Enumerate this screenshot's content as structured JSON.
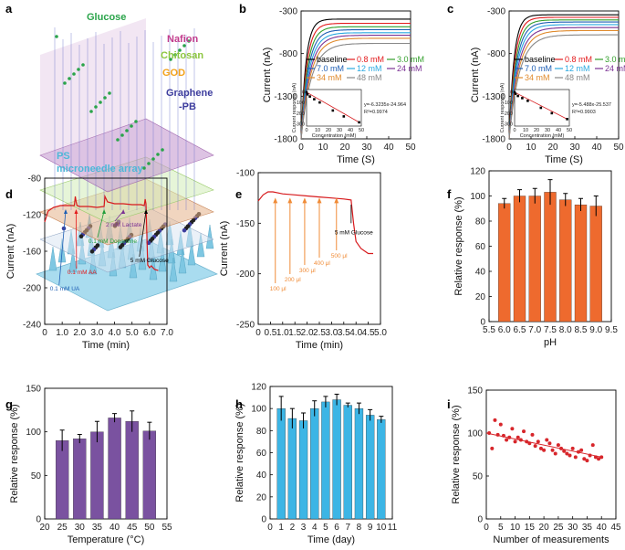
{
  "panel_letters": [
    "a",
    "b",
    "c",
    "d",
    "e",
    "f",
    "g",
    "h",
    "i"
  ],
  "schematic": {
    "labels": {
      "glucose": "Glucose",
      "nafion": "Nafion",
      "chitosan": "Chitosan",
      "god": "GOD",
      "graphene": "Graphene",
      "pb": "-PB",
      "ps": "PS",
      "array": "microneedle array"
    },
    "colors": {
      "glucose": "#2aa44a",
      "nafion": "#c23b8c",
      "chitosan": "#8cc63f",
      "god": "#f3a21b",
      "graphene": "#3d3d9e",
      "ps": "#4db8d8"
    }
  },
  "colors": {
    "red_trace": "#d7191c",
    "orange_bar": "#ee6a2e",
    "purple_bar": "#7a52a0",
    "blue_bar": "#3cb5e5",
    "scatter_red": "#d7262b",
    "arrow_orange": "#f08c38"
  },
  "chart_data": [
    {
      "id": "b",
      "type": "line",
      "title": "",
      "xlabel": "Time (S)",
      "ylabel": "Current (nA)",
      "xlim": [
        0,
        50
      ],
      "ylim": [
        -1800,
        -300
      ],
      "xticks": [
        0,
        10,
        20,
        30,
        40,
        50
      ],
      "yticks": [
        -300,
        -800,
        -1300,
        -1800
      ],
      "series": [
        {
          "name": "baseline",
          "color": "#000000",
          "plateau": -395
        },
        {
          "name": "0.8 mM",
          "color": "#e31a1c",
          "plateau": -445
        },
        {
          "name": "3.0 mM",
          "color": "#33a02c",
          "plateau": -485
        },
        {
          "name": "7.0 mM",
          "color": "#1f5fb4",
          "plateau": -520
        },
        {
          "name": "12 mM",
          "color": "#29a8e0",
          "plateau": -555
        },
        {
          "name": "24 mM",
          "color": "#7b3294",
          "plateau": -585
        },
        {
          "name": "34 mM",
          "color": "#e08a2c",
          "plateau": -620
        },
        {
          "name": "48 mM",
          "color": "#888888",
          "plateau": -680
        }
      ],
      "inset": {
        "xlabel": "Concentration (mM)",
        "ylabel": "Current response (nA)",
        "xticks": [
          0,
          10,
          20,
          30,
          40,
          50
        ],
        "yticks": [
          0,
          -100,
          -200,
          -300
        ],
        "ylim": [
          -320,
          20
        ],
        "x": [
          0,
          0.8,
          3,
          7,
          12,
          24,
          34,
          48
        ],
        "y": [
          -5,
          -25,
          -45,
          -70,
          -100,
          -175,
          -230,
          -285
        ],
        "equation": "y=-6.3235x-24.964",
        "r2": "R²=0.9974"
      }
    },
    {
      "id": "c",
      "type": "line",
      "title": "",
      "xlabel": "Time (S)",
      "ylabel": "Current (nA)",
      "xlim": [
        0,
        50
      ],
      "ylim": [
        -1800,
        -300
      ],
      "xticks": [
        0,
        10,
        20,
        30,
        40,
        50
      ],
      "yticks": [
        -300,
        -800,
        -1300,
        -1800
      ],
      "series": [
        {
          "name": "baseline",
          "color": "#000000",
          "plateau": -345
        },
        {
          "name": "0.8 mM",
          "color": "#e31a1c",
          "plateau": -375
        },
        {
          "name": "3.0 mM",
          "color": "#33a02c",
          "plateau": -405
        },
        {
          "name": "7.0 mM",
          "color": "#1f5fb4",
          "plateau": -430
        },
        {
          "name": "12 mM",
          "color": "#29a8e0",
          "plateau": -460
        },
        {
          "name": "24 mM",
          "color": "#7b3294",
          "plateau": -495
        },
        {
          "name": "34 mM",
          "color": "#e08a2c",
          "plateau": -530
        },
        {
          "name": "48 mM",
          "color": "#888888",
          "plateau": -580
        }
      ],
      "inset": {
        "xlabel": "Concentration (mM)",
        "ylabel": "Current response (nA)",
        "xticks": [
          0,
          10,
          20,
          30,
          40,
          50
        ],
        "yticks": [
          0,
          -100,
          -200,
          -300
        ],
        "ylim": [
          -320,
          20
        ],
        "x": [
          0,
          0.8,
          3,
          7,
          12,
          24,
          34,
          48
        ],
        "y": [
          -5,
          -20,
          -40,
          -60,
          -85,
          -150,
          -200,
          -255
        ],
        "equation": "y=-5.488x-25.537",
        "r2": "R²=0.9903"
      }
    },
    {
      "id": "d",
      "type": "line",
      "xlabel": "Time (min)",
      "ylabel": "Current (nA)",
      "xlim": [
        0,
        7
      ],
      "ylim": [
        -240,
        -80
      ],
      "xticks": [
        0,
        1,
        2,
        3,
        4,
        5,
        6,
        7
      ],
      "xticklabels": [
        "0",
        "1.0",
        "2.0",
        "3.0",
        "4.0",
        "5.0",
        "6.0",
        "7.0"
      ],
      "yticks": [
        -80,
        -120,
        -160,
        -200,
        -240
      ],
      "x": [
        0,
        0.2,
        0.5,
        0.9,
        1.2,
        1.7,
        1.75,
        1.8,
        1.85,
        2.0,
        2.5,
        3.0,
        3.4,
        3.45,
        3.6,
        4.0,
        4.5,
        5.0,
        5.5,
        5.7,
        5.75,
        5.8,
        5.9,
        6.0,
        6.1,
        6.3,
        6.5
      ],
      "y": [
        -128,
        -116,
        -112,
        -110,
        -110,
        -110,
        -100,
        -106,
        -110,
        -111,
        -111,
        -112,
        -111,
        -100,
        -106,
        -108,
        -108,
        -109,
        -109,
        -110,
        -103,
        -108,
        -175,
        -178,
        -176,
        -180,
        -181
      ],
      "annotations": [
        {
          "text": "0.1 mM UA",
          "color": "#1f5fb4",
          "x": 1.2
        },
        {
          "text": "0.1 mM  AA",
          "color": "#e31a1c",
          "x": 1.8
        },
        {
          "text": "0.1 mM Dopamine",
          "color": "#1e9e3a",
          "x": 3.4
        },
        {
          "text": "2 mM Lactate",
          "color": "#7b3294",
          "x": 4.5
        },
        {
          "text": "5 mM Glucose",
          "color": "#000000",
          "x": 5.8
        }
      ]
    },
    {
      "id": "e",
      "type": "line",
      "xlabel": "Time (min)",
      "ylabel": "Current (nA)",
      "xlim": [
        0,
        5
      ],
      "ylim": [
        -250,
        -100
      ],
      "xticks": [
        0,
        0.5,
        1,
        1.5,
        2,
        2.5,
        3,
        3.5,
        4,
        4.5,
        5
      ],
      "xticklabels": [
        "0",
        "0.5",
        "1.0",
        "1.5",
        "2.0",
        "2.5",
        "3.0",
        "3.5",
        "4.0",
        "4.5",
        "5.0"
      ],
      "yticks": [
        -100,
        -150,
        -200,
        -250
      ],
      "x": [
        0,
        0.2,
        0.4,
        0.6,
        0.8,
        1.0,
        1.5,
        2.0,
        2.5,
        3.0,
        3.5,
        3.8,
        3.9,
        4.0,
        4.2,
        4.5,
        4.7
      ],
      "y": [
        -128,
        -122,
        -119,
        -119,
        -120,
        -121,
        -122,
        -123,
        -124,
        -125,
        -126,
        -127,
        -150,
        -168,
        -175,
        -180,
        -180
      ],
      "annotations": [
        {
          "text": "100 μl",
          "x": 0.7
        },
        {
          "text": "200 μl",
          "x": 1.3
        },
        {
          "text": "300 μl",
          "x": 1.9
        },
        {
          "text": "400 μl",
          "x": 2.5
        },
        {
          "text": "500 μl",
          "x": 3.2
        },
        {
          "text": "5 mM Glucose",
          "x": 3.8
        }
      ]
    },
    {
      "id": "f",
      "type": "bar",
      "xlabel": "pH",
      "ylabel": "Relative response (%)",
      "xlim": [
        5.5,
        9.5
      ],
      "ylim": [
        0,
        120
      ],
      "xticks": [
        5.5,
        6.0,
        6.5,
        7.0,
        7.5,
        8.0,
        8.5,
        9.0,
        9.5
      ],
      "xticklabels": [
        "5.5",
        "6.0",
        "6.5",
        "7.0",
        "7.5",
        "8.0",
        "8.5",
        "9.0",
        "9.5"
      ],
      "yticks": [
        0,
        20,
        40,
        60,
        80,
        100,
        120
      ],
      "x": [
        6.0,
        6.5,
        7.0,
        7.5,
        8.0,
        8.5,
        9.0
      ],
      "values": [
        94,
        100,
        100,
        103,
        97,
        93,
        92
      ],
      "errors": [
        4,
        5,
        6,
        10,
        5,
        5,
        8
      ]
    },
    {
      "id": "g",
      "type": "bar",
      "xlabel": "Temperature (°C)",
      "ylabel": "Relative response (%)",
      "xlim": [
        20,
        55
      ],
      "ylim": [
        0,
        150
      ],
      "xticks": [
        20,
        25,
        30,
        35,
        40,
        45,
        50,
        55
      ],
      "yticks": [
        0,
        50,
        100,
        150
      ],
      "x": [
        25,
        30,
        35,
        40,
        45,
        50
      ],
      "values": [
        90,
        92,
        100,
        116,
        112,
        101
      ],
      "errors": [
        12,
        5,
        12,
        5,
        12,
        10
      ]
    },
    {
      "id": "h",
      "type": "bar",
      "xlabel": "Time (day)",
      "ylabel": "Relative response (%)",
      "xlim": [
        0,
        11
      ],
      "ylim": [
        0,
        120
      ],
      "xticks": [
        0,
        1,
        2,
        3,
        4,
        5,
        6,
        7,
        8,
        9,
        10,
        11
      ],
      "yticks": [
        0,
        20,
        40,
        60,
        80,
        100,
        120
      ],
      "x": [
        1,
        2,
        3,
        4,
        5,
        6,
        7,
        8,
        9,
        10
      ],
      "values": [
        100,
        91,
        89,
        100,
        106,
        108,
        103,
        100,
        94,
        90
      ],
      "errors": [
        11,
        9,
        7,
        7,
        5,
        5,
        2,
        5,
        5,
        3
      ]
    },
    {
      "id": "i",
      "type": "scatter",
      "xlabel": "Number of measurements",
      "ylabel": "Relative response (%)",
      "xlim": [
        0,
        45
      ],
      "ylim": [
        0,
        150
      ],
      "xticks": [
        0,
        5,
        10,
        15,
        20,
        25,
        30,
        35,
        40,
        45
      ],
      "yticks": [
        0,
        50,
        100,
        150
      ],
      "x": [
        1,
        2,
        3,
        4,
        5,
        6,
        7,
        8,
        9,
        10,
        11,
        12,
        13,
        14,
        15,
        16,
        17,
        18,
        19,
        20,
        21,
        22,
        23,
        24,
        25,
        26,
        27,
        28,
        29,
        30,
        31,
        32,
        33,
        34,
        35,
        36,
        37,
        38,
        39,
        40
      ],
      "y": [
        100,
        82,
        115,
        98,
        110,
        97,
        92,
        95,
        105,
        90,
        95,
        92,
        102,
        90,
        88,
        98,
        85,
        90,
        82,
        80,
        92,
        88,
        80,
        76,
        86,
        82,
        79,
        76,
        74,
        82,
        72,
        78,
        80,
        70,
        68,
        74,
        86,
        72,
        70,
        72
      ],
      "fit": {
        "x": [
          0,
          40
        ],
        "y": [
          100,
          72
        ]
      }
    }
  ]
}
